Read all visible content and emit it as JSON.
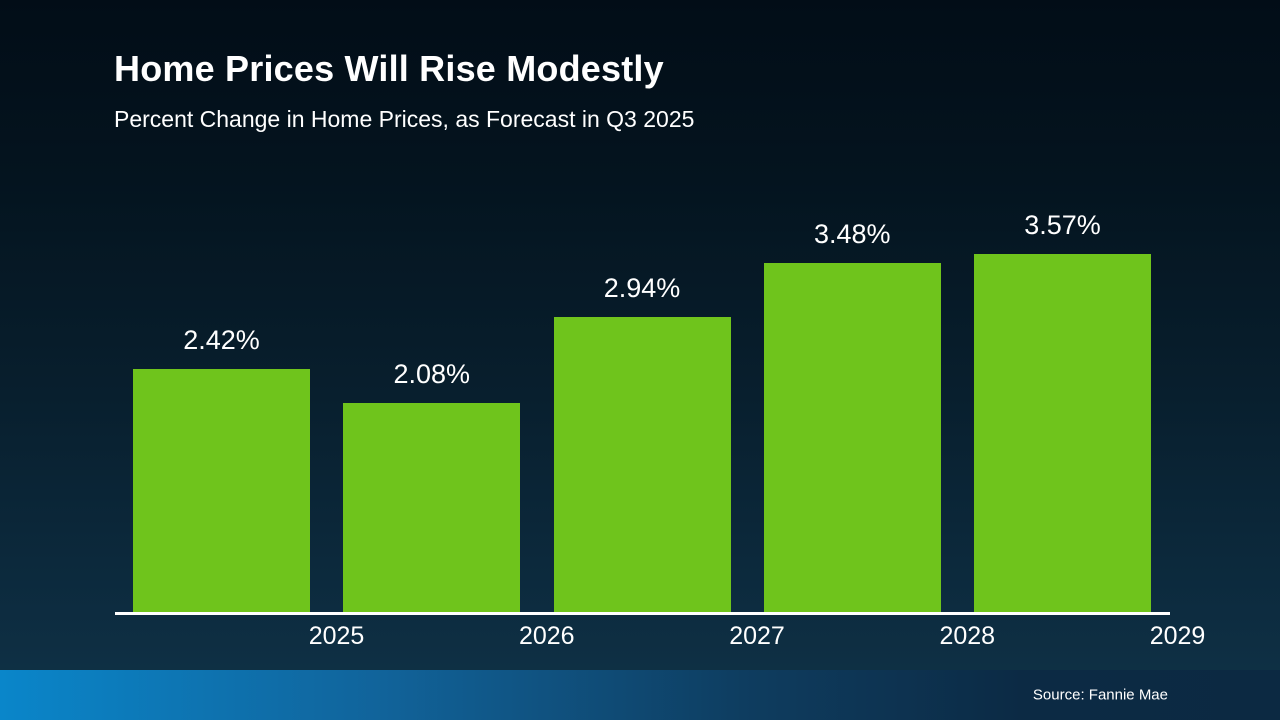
{
  "chart_data": {
    "type": "bar",
    "title": "Home Prices Will Rise Modestly",
    "subtitle": "Percent Change in Home Prices, as Forecast in Q3 2025",
    "categories": [
      "2025",
      "2026",
      "2027",
      "2028",
      "2029"
    ],
    "values": [
      2.42,
      2.08,
      2.94,
      3.48,
      3.57
    ],
    "labels": [
      "2.42%",
      "2.08%",
      "2.94%",
      "3.48%",
      "3.57%"
    ],
    "ylim": [
      0,
      3.6
    ],
    "grid": false,
    "legend": false,
    "bar_color": "#6fc41c"
  },
  "footer": {
    "source": "Source: Fannie Mae"
  },
  "colors": {
    "background_top": "#020d17",
    "background_bottom": "#0f3348",
    "bar": "#6fc41c",
    "text": "#ffffff",
    "footer_blue": "#0a86ca",
    "footer_dark": "#0c2942"
  }
}
